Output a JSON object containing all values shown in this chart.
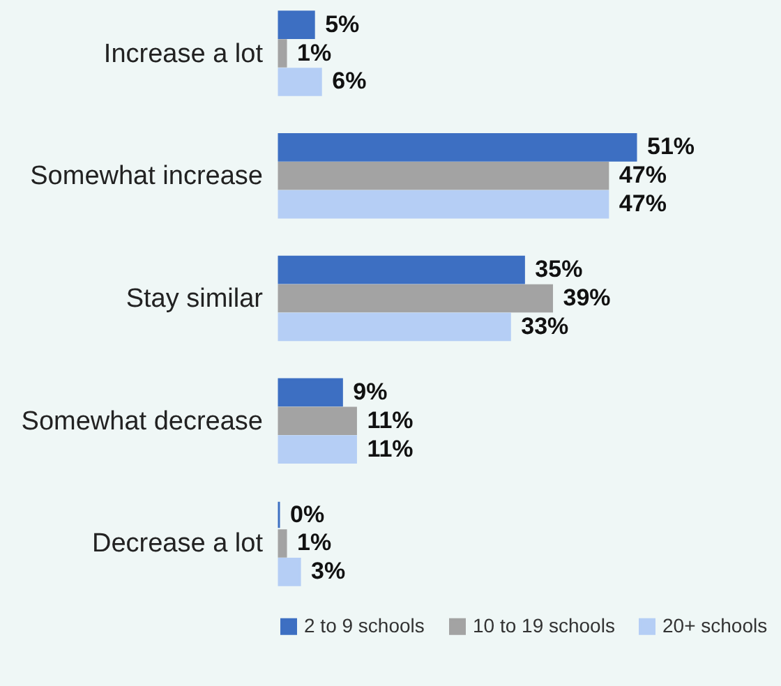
{
  "chart_data": {
    "type": "bar",
    "orientation": "horizontal",
    "legend": "bottom",
    "categories": [
      "Increase a lot",
      "Somewhat increase",
      "Stay similar",
      "Somewhat decrease",
      "Decrease a lot"
    ],
    "series": [
      {
        "name": "2 to 9 schools",
        "color": "#3d6fc2",
        "values": [
          5,
          51,
          35,
          9,
          0
        ],
        "value_labels": [
          "5%",
          "51%",
          "35%",
          "9%",
          "0%"
        ]
      },
      {
        "name": "10 to 19 schools",
        "color": "#a3a3a3",
        "values": [
          1,
          47,
          39,
          11,
          1
        ],
        "value_labels": [
          "1%",
          "47%",
          "39%",
          "11%",
          "1%"
        ]
      },
      {
        "name": "20+ schools",
        "color": "#b5cef5",
        "values": [
          6,
          47,
          33,
          11,
          3
        ],
        "value_labels": [
          "6%",
          "47%",
          "33%",
          "11%",
          "3%"
        ]
      }
    ]
  }
}
